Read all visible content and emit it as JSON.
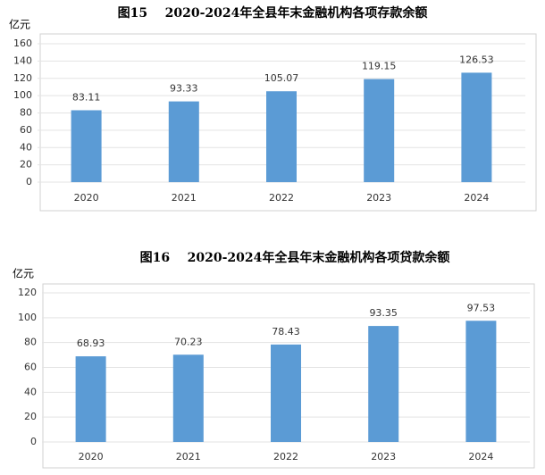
{
  "chart_data": [
    {
      "type": "bar",
      "title": "图15    2020-2024年全县年末金融机构各项存款余额",
      "y_label": "亿元",
      "categories": [
        "2020",
        "2021",
        "2022",
        "2023",
        "2024"
      ],
      "values": [
        83.11,
        93.33,
        105.07,
        119.15,
        126.53
      ],
      "color": "#5b9bd5",
      "ylim": [
        0,
        160
      ],
      "yticks": [
        0,
        20,
        40,
        60,
        80,
        100,
        120,
        140,
        160
      ],
      "grid": true
    },
    {
      "type": "bar",
      "title": "图16    2020-2024年全县年末金融机构各项贷款余额",
      "y_label": "亿元",
      "categories": [
        "2020",
        "2021",
        "2022",
        "2023",
        "2024"
      ],
      "values": [
        68.93,
        70.23,
        78.43,
        93.35,
        97.53
      ],
      "color": "#5b9bd5",
      "ylim": [
        0,
        120
      ],
      "yticks": [
        0,
        20,
        40,
        60,
        80,
        100,
        120
      ],
      "grid": true
    }
  ]
}
